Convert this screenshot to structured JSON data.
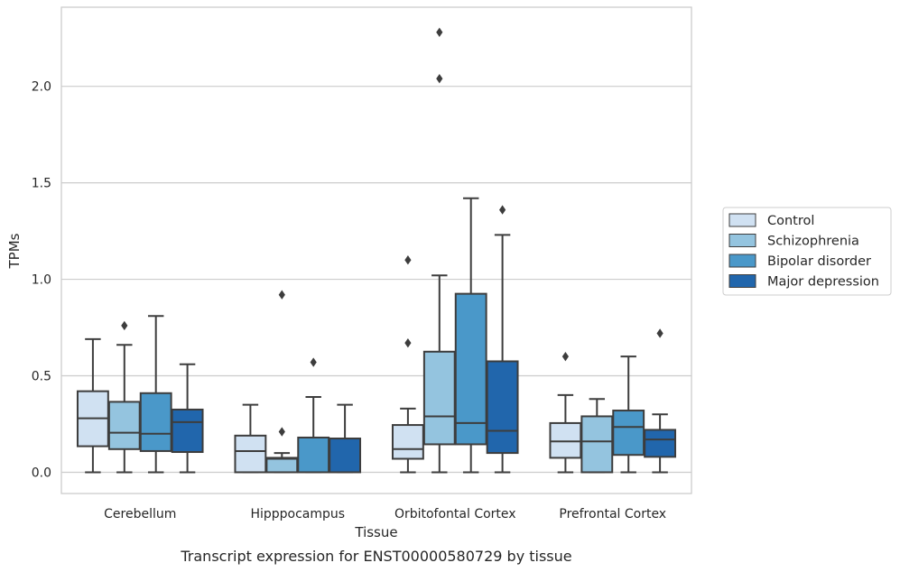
{
  "chart_data": {
    "type": "box",
    "caption": "Transcript expression for ENST00000580729 by tissue",
    "xlabel": "Tissue",
    "ylabel": "TPMs",
    "ylim": [
      -0.11,
      2.41
    ],
    "yticks": [
      0.0,
      0.5,
      1.0,
      1.5,
      2.0
    ],
    "ytick_labels": [
      "0.0",
      "0.5",
      "1.0",
      "1.5",
      "2.0"
    ],
    "grid": "horizontal",
    "legend_position": "right",
    "categories": [
      "Cerebellum",
      "Hipppocampus",
      "Orbitofontal Cortex",
      "Prefrontal Cortex"
    ],
    "series": [
      {
        "name": "Control",
        "color": "#d0e1f2",
        "boxes": [
          {
            "whisker_low": 0.0,
            "q1": 0.135,
            "median": 0.28,
            "q3": 0.42,
            "whisker_high": 0.69,
            "outliers": []
          },
          {
            "whisker_low": 0.0,
            "q1": 0.0,
            "median": 0.11,
            "q3": 0.19,
            "whisker_high": 0.35,
            "outliers": []
          },
          {
            "whisker_low": 0.0,
            "q1": 0.07,
            "median": 0.12,
            "q3": 0.245,
            "whisker_high": 0.33,
            "outliers": [
              0.67,
              1.1
            ]
          },
          {
            "whisker_low": 0.0,
            "q1": 0.075,
            "median": 0.16,
            "q3": 0.255,
            "whisker_high": 0.4,
            "outliers": [
              0.6
            ]
          }
        ]
      },
      {
        "name": "Schizophrenia",
        "color": "#94c4df",
        "boxes": [
          {
            "whisker_low": 0.0,
            "q1": 0.12,
            "median": 0.205,
            "q3": 0.365,
            "whisker_high": 0.66,
            "outliers": [
              0.76
            ]
          },
          {
            "whisker_low": 0.0,
            "q1": 0.0,
            "median": 0.07,
            "q3": 0.075,
            "whisker_high": 0.1,
            "outliers": [
              0.21,
              0.92
            ]
          },
          {
            "whisker_low": 0.0,
            "q1": 0.145,
            "median": 0.29,
            "q3": 0.625,
            "whisker_high": 1.02,
            "outliers": [
              2.04,
              2.28
            ]
          },
          {
            "whisker_low": 0.0,
            "q1": 0.0,
            "median": 0.16,
            "q3": 0.29,
            "whisker_high": 0.38,
            "outliers": []
          }
        ]
      },
      {
        "name": "Bipolar disorder",
        "color": "#4a98c9",
        "boxes": [
          {
            "whisker_low": 0.0,
            "q1": 0.11,
            "median": 0.2,
            "q3": 0.41,
            "whisker_high": 0.81,
            "outliers": []
          },
          {
            "whisker_low": 0.0,
            "q1": 0.0,
            "median": 0.18,
            "q3": 0.18,
            "whisker_high": 0.39,
            "outliers": [
              0.57
            ]
          },
          {
            "whisker_low": 0.0,
            "q1": 0.145,
            "median": 0.255,
            "q3": 0.925,
            "whisker_high": 1.42,
            "outliers": []
          },
          {
            "whisker_low": 0.0,
            "q1": 0.09,
            "median": 0.235,
            "q3": 0.32,
            "whisker_high": 0.6,
            "outliers": []
          }
        ]
      },
      {
        "name": "Major depression",
        "color": "#2166ac",
        "boxes": [
          {
            "whisker_low": 0.0,
            "q1": 0.105,
            "median": 0.26,
            "q3": 0.325,
            "whisker_high": 0.56,
            "outliers": []
          },
          {
            "whisker_low": 0.0,
            "q1": 0.0,
            "median": 0.175,
            "q3": 0.175,
            "whisker_high": 0.35,
            "outliers": []
          },
          {
            "whisker_low": 0.0,
            "q1": 0.1,
            "median": 0.215,
            "q3": 0.575,
            "whisker_high": 1.23,
            "outliers": [
              1.36
            ]
          },
          {
            "whisker_low": 0.0,
            "q1": 0.08,
            "median": 0.17,
            "q3": 0.22,
            "whisker_high": 0.3,
            "outliers": [
              0.72
            ]
          }
        ]
      }
    ]
  }
}
